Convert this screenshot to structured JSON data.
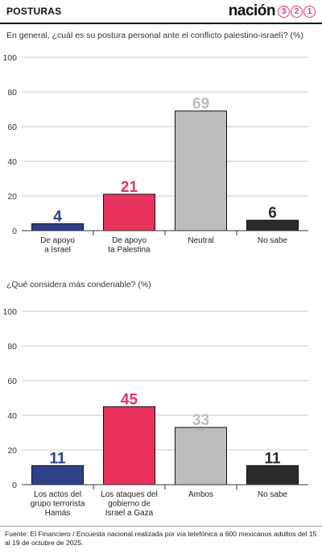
{
  "header": {
    "section_label": "POSTURAS",
    "brand_word": "nación",
    "brand_digits": [
      "3",
      "2",
      "1"
    ]
  },
  "colors": {
    "israel": "#2d4088",
    "palestine": "#e8335f",
    "neutral": "#bcbcbe",
    "unknown": "#2b2b2b",
    "brand": "#e8335f"
  },
  "chart_data": [
    {
      "type": "bar",
      "question": "En general, ¿cuál es su postura personal ante el conflicto palestino-israelí? (%)",
      "categories": [
        [
          "De apoyo",
          "a Israel"
        ],
        [
          "De apoyo",
          "ta Palestina"
        ],
        [
          "Neutral"
        ],
        [
          "No sabe"
        ]
      ],
      "values": [
        4,
        21,
        69,
        6
      ],
      "colors": [
        "#2d4088",
        "#e8335f",
        "#bcbcbe",
        "#2b2b2b"
      ],
      "ylim": [
        0,
        100
      ],
      "yticks": [
        0,
        20,
        40,
        60,
        80,
        100
      ],
      "grid": true
    },
    {
      "type": "bar",
      "question": "¿Qué considera más condenable? (%)",
      "categories": [
        [
          "Los actos del",
          "grupo terrorista",
          "Hamás"
        ],
        [
          "Los ataques del",
          "gobierno de",
          "Israel a Gaza"
        ],
        [
          "Ambos"
        ],
        [
          "No sabe"
        ]
      ],
      "values": [
        11,
        45,
        33,
        11
      ],
      "colors": [
        "#2d4088",
        "#e8335f",
        "#bcbcbe",
        "#2b2b2b"
      ],
      "ylim": [
        0,
        100
      ],
      "yticks": [
        0,
        20,
        40,
        60,
        80,
        100
      ],
      "grid": true
    }
  ],
  "footer": {
    "source": "Fuente: El Financiero / Encuesta nacional realizada por vía telefónica a 600 mexicanos adultos del 15 al 19 de octubre de 2025."
  }
}
